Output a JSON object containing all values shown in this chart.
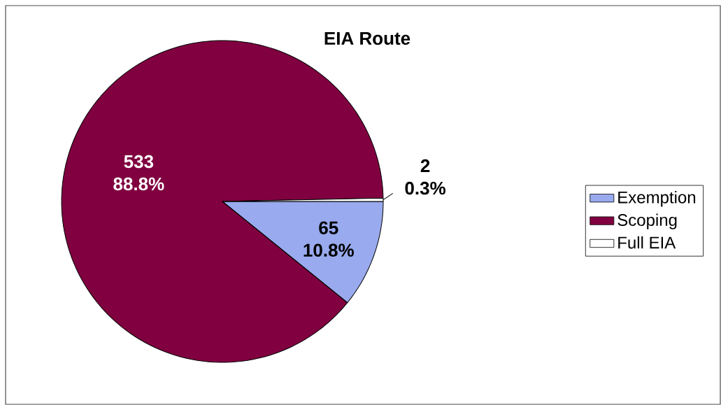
{
  "chart_data": {
    "type": "pie",
    "title": "EIA Route",
    "categories": [
      "Exemption",
      "Scoping",
      "Full EIA"
    ],
    "values": [
      65,
      533,
      2
    ],
    "colors": [
      "#99aaee",
      "#800040",
      "#ffffff"
    ],
    "value_labels": [
      "65 10.8%",
      "533 88.8%",
      "2 0.3%"
    ],
    "legend": "right"
  }
}
